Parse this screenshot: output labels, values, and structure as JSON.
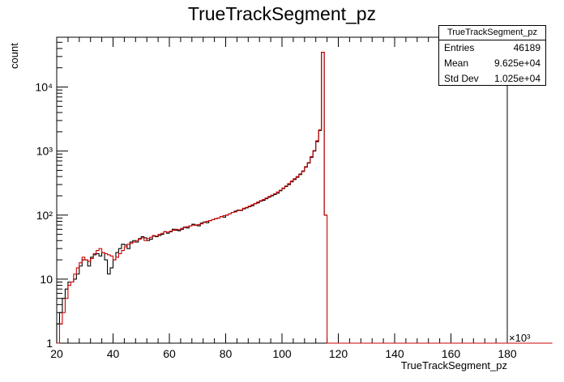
{
  "chart_data": {
    "type": "histogram",
    "title": "TrueTrackSegment_pz",
    "xlabel": "TrueTrackSegment_pz",
    "ylabel": "count",
    "x_multiplier": "×10³",
    "xlim": [
      20,
      180
    ],
    "ylim": [
      1,
      60000
    ],
    "yscale": "log",
    "x_ticks": [
      "20",
      "40",
      "60",
      "80",
      "100",
      "120",
      "140",
      "160",
      "180"
    ],
    "y_ticks": [
      "1",
      "10",
      "10²",
      "10³",
      "10⁴"
    ],
    "bin_width": 1,
    "series": [
      {
        "color": "#000000",
        "x_start": 20,
        "values": [
          2,
          3,
          5,
          7,
          9,
          9,
          10,
          12,
          16,
          20,
          20,
          16,
          22,
          24,
          25,
          23,
          26,
          20,
          12,
          15,
          20,
          26,
          30,
          35,
          34,
          30,
          38,
          40,
          38,
          43,
          46,
          44,
          40,
          42,
          47,
          46,
          48,
          50,
          55,
          52,
          55,
          60,
          58,
          57,
          60,
          65,
          63,
          68,
          72,
          70,
          68,
          75,
          78,
          76,
          82,
          85,
          88,
          90,
          95,
          93,
          100,
          105,
          110,
          115,
          120,
          118,
          125,
          130,
          135,
          140,
          150,
          155,
          165,
          170,
          180,
          190,
          200,
          210,
          220,
          240,
          260,
          280,
          300,
          330,
          360,
          390,
          430,
          480,
          560,
          650,
          800,
          1000,
          1400,
          2100,
          35000,
          100
        ]
      },
      {
        "color": "#cc0000",
        "x_start": 20,
        "values": [
          1,
          2,
          3,
          5,
          8,
          9,
          12,
          15,
          18,
          22,
          20,
          19,
          21,
          25,
          28,
          30,
          26,
          25,
          24,
          23,
          20,
          22,
          25,
          28,
          32,
          35,
          36,
          38,
          40,
          42,
          44,
          40,
          43,
          45,
          48,
          47,
          50,
          52,
          55,
          54,
          56,
          58,
          60,
          59,
          62,
          64,
          66,
          68,
          70,
          69,
          71,
          73,
          77,
          80,
          82,
          85,
          88,
          90,
          95,
          98,
          100,
          105,
          110,
          112,
          118,
          120,
          128,
          132,
          138,
          145,
          152,
          160,
          168,
          175,
          185,
          195,
          205,
          215,
          230,
          245,
          265,
          285,
          310,
          340,
          370,
          400,
          440,
          490,
          570,
          660,
          820,
          1020,
          1450,
          2150,
          35000,
          100,
          1,
          1,
          1,
          1,
          1,
          1,
          1,
          1,
          1,
          1,
          1,
          1,
          1,
          1,
          1,
          1,
          1,
          1,
          1,
          1,
          1,
          1,
          1,
          1,
          1,
          1,
          1,
          1,
          1,
          1,
          1,
          1,
          1,
          1,
          1,
          1,
          1,
          1,
          1,
          1,
          1,
          1,
          1,
          1,
          1,
          1,
          1,
          1,
          1,
          1,
          1,
          1,
          1,
          1,
          1,
          1,
          1,
          1,
          1,
          1,
          1,
          1,
          1,
          1,
          1,
          1,
          1,
          1,
          1,
          1,
          1,
          1,
          1,
          1,
          1,
          1,
          1,
          1,
          1,
          1
        ]
      }
    ]
  },
  "stats_box": {
    "title": "TrueTrackSegment_pz",
    "entries_label": "Entries",
    "entries_value": "46189",
    "mean_label": "Mean",
    "mean_value": "9.625e+04",
    "stddev_label": "Std Dev",
    "stddev_value": "1.025e+04"
  }
}
